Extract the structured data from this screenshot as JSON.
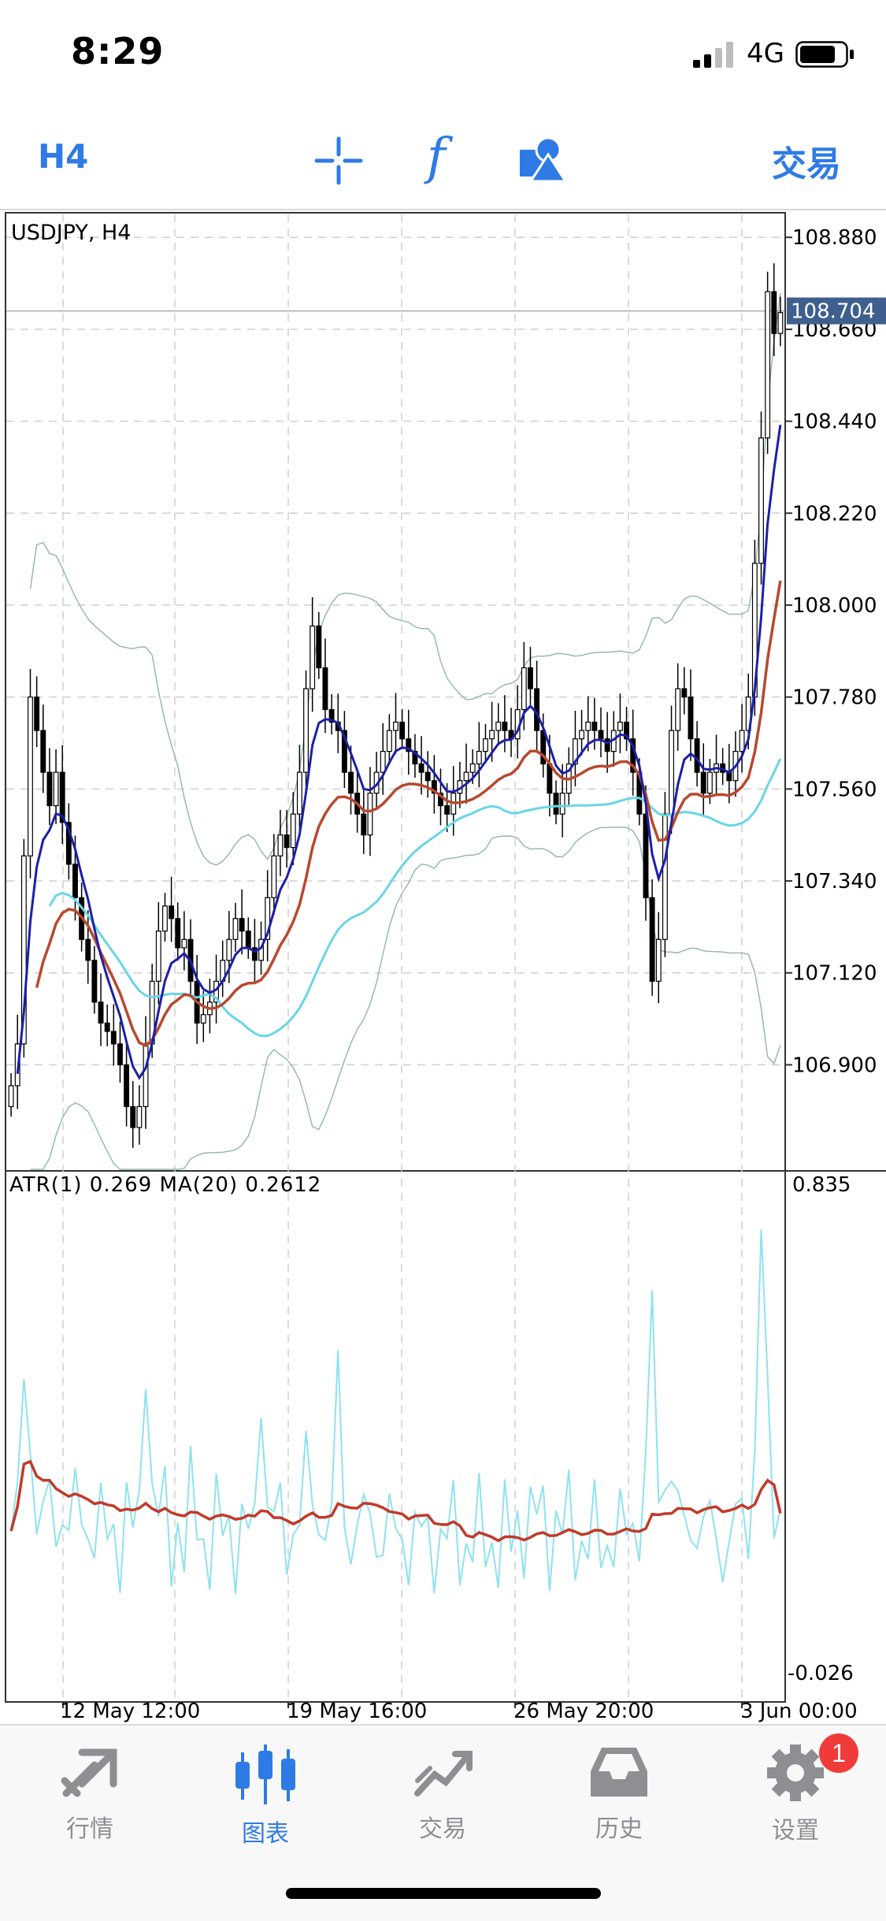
{
  "status": {
    "time": "8:29",
    "network": "4G"
  },
  "toolbar": {
    "timeframe": "H4",
    "func_symbol": "f",
    "trade_label": "交易",
    "accent": "#2f7be5"
  },
  "chart": {
    "symbol_label": "USDJPY, H4",
    "price_axis_ticks": [
      "108.880",
      "108.660",
      "108.440",
      "108.220",
      "108.000",
      "107.780",
      "107.560",
      "107.340",
      "107.120",
      "106.900"
    ],
    "current_price": "108.704",
    "indicator_label": "ATR(1) 0.269 MA(20) 0.2612",
    "indicator_axis": [
      "0.835",
      "-0.026"
    ],
    "time_axis": [
      "12 May 12:00",
      "19 May 16:00",
      "26 May 20:00",
      "3 Jun 00:00"
    ],
    "colors": {
      "fast_ma": "#1d1fa8",
      "slow_ma": "#b8492f",
      "cyan_ma": "#69d6e6",
      "bands": "#9bb7b5",
      "atr": "#8fe2ef",
      "atr_ma": "#c23a2a",
      "price_tag": "#3f5f8f"
    }
  },
  "chart_data": {
    "type": "candlestick",
    "symbol": "USDJPY",
    "timeframe": "H4",
    "y_range": [
      106.65,
      108.92
    ],
    "last_price": 108.704,
    "closes": [
      106.85,
      106.95,
      107.4,
      107.78,
      107.7,
      107.6,
      107.52,
      107.6,
      107.48,
      107.38,
      107.3,
      107.2,
      107.15,
      107.05,
      107.0,
      106.98,
      106.95,
      106.9,
      106.8,
      106.75,
      106.8,
      106.95,
      107.1,
      107.22,
      107.28,
      107.25,
      107.18,
      107.2,
      107.1,
      107.0,
      107.02,
      107.05,
      107.1,
      107.15,
      107.2,
      107.25,
      107.22,
      107.18,
      107.15,
      107.2,
      107.3,
      107.4,
      107.45,
      107.42,
      107.5,
      107.6,
      107.8,
      107.95,
      107.85,
      107.75,
      107.72,
      107.7,
      107.6,
      107.55,
      107.5,
      107.45,
      107.55,
      107.6,
      107.65,
      107.7,
      107.72,
      107.68,
      107.65,
      107.62,
      107.6,
      107.58,
      107.55,
      107.52,
      107.5,
      107.55,
      107.58,
      107.6,
      107.62,
      107.65,
      107.68,
      107.7,
      107.72,
      107.7,
      107.68,
      107.75,
      107.85,
      107.8,
      107.7,
      107.62,
      107.55,
      107.5,
      107.55,
      107.62,
      107.68,
      107.7,
      107.72,
      107.7,
      107.68,
      107.65,
      107.7,
      107.72,
      107.68,
      107.6,
      107.5,
      107.3,
      107.1,
      107.2,
      107.5,
      107.7,
      107.8,
      107.78,
      107.68,
      107.6,
      107.55,
      107.6,
      107.62,
      107.6,
      107.58,
      107.65,
      107.7,
      107.78,
      108.1,
      108.4,
      108.75,
      108.65,
      108.7
    ],
    "atr": {
      "ma_period": 20,
      "last_value": 0.269,
      "last_ma": 0.2612,
      "y_range": [
        -0.026,
        0.835
      ]
    }
  },
  "tabs": [
    {
      "label": "行情",
      "icon": "quotes-icon"
    },
    {
      "label": "图表",
      "icon": "chart-icon",
      "active": true
    },
    {
      "label": "交易",
      "icon": "trade-icon"
    },
    {
      "label": "历史",
      "icon": "history-icon"
    },
    {
      "label": "设置",
      "icon": "settings-icon"
    }
  ],
  "settings_badge": "1"
}
